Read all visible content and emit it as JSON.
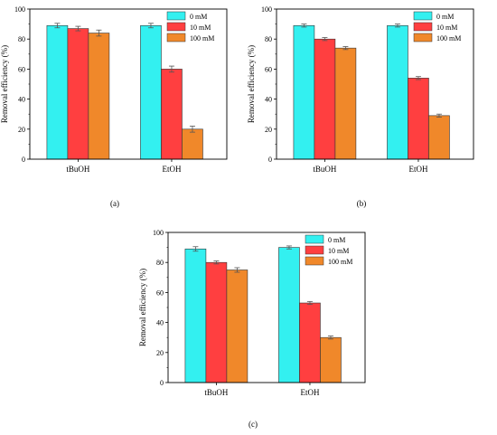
{
  "figure": {
    "panels": [
      "(a)",
      "(b)",
      "(c)"
    ]
  },
  "chart_data": [
    {
      "type": "bar",
      "panel_label": "(a)",
      "categories": [
        "tBuOH",
        "EtOH"
      ],
      "series": [
        {
          "name": "0 mM",
          "values": [
            89,
            89
          ],
          "errors": [
            1.5,
            1.5
          ]
        },
        {
          "name": "10 mM",
          "values": [
            87,
            60
          ],
          "errors": [
            1.5,
            2
          ]
        },
        {
          "name": "100 mM",
          "values": [
            84,
            20
          ],
          "errors": [
            2,
            2
          ]
        }
      ],
      "colors": [
        "#33F0F0",
        "#FF3F40",
        "#F0882A"
      ],
      "ylabel": "Removal efficiency (%)",
      "xlabel": "",
      "ylim": [
        0,
        100
      ],
      "yticks": [
        0,
        20,
        40,
        60,
        80,
        100
      ],
      "legend_position": "top-right",
      "grid": false
    },
    {
      "type": "bar",
      "panel_label": "(b)",
      "categories": [
        "tBuOH",
        "EtOH"
      ],
      "series": [
        {
          "name": "0 mM",
          "values": [
            89,
            89
          ],
          "errors": [
            1,
            1
          ]
        },
        {
          "name": "10 mM",
          "values": [
            80,
            54
          ],
          "errors": [
            1,
            1
          ]
        },
        {
          "name": "100 mM",
          "values": [
            74,
            29
          ],
          "errors": [
            1,
            1
          ]
        }
      ],
      "colors": [
        "#33F0F0",
        "#FF3F40",
        "#F0882A"
      ],
      "ylabel": "Removal efficiency (%)",
      "xlabel": "",
      "ylim": [
        0,
        100
      ],
      "yticks": [
        0,
        20,
        40,
        60,
        80,
        100
      ],
      "legend_position": "top-right",
      "grid": false
    },
    {
      "type": "bar",
      "panel_label": "(c)",
      "categories": [
        "tBuOH",
        "EtOH"
      ],
      "series": [
        {
          "name": "0 mM",
          "values": [
            89,
            90
          ],
          "errors": [
            1.5,
            1
          ]
        },
        {
          "name": "10 mM",
          "values": [
            80,
            53
          ],
          "errors": [
            1,
            1
          ]
        },
        {
          "name": "100 mM",
          "values": [
            75,
            30
          ],
          "errors": [
            1.5,
            1
          ]
        }
      ],
      "colors": [
        "#33F0F0",
        "#FF3F40",
        "#F0882A"
      ],
      "ylabel": "Removal efficiency (%)",
      "xlabel": "",
      "ylim": [
        0,
        100
      ],
      "yticks": [
        0,
        20,
        40,
        60,
        80,
        100
      ],
      "legend_position": "top-right",
      "grid": false
    }
  ]
}
